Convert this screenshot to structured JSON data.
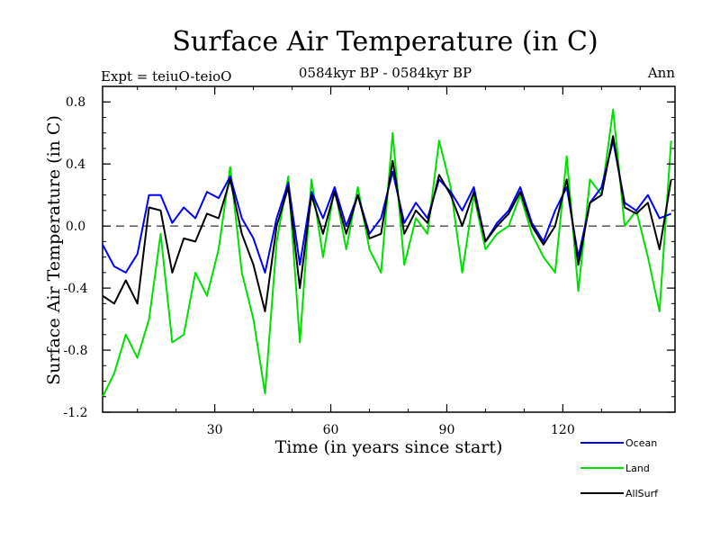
{
  "header": {
    "title": "Surface Air Temperature (in C)",
    "expt": "Expt = teiuO-teioO",
    "period": "0584kyr BP - 0584kyr BP",
    "season": "Ann"
  },
  "chart_data": {
    "type": "line",
    "title": "Surface Air Temperature (in C)",
    "xlabel": "Time (in years since start)",
    "ylabel": "Surface Air Temperature (in C)",
    "xlim": [
      1,
      149
    ],
    "ylim": [
      -1.2,
      0.9
    ],
    "xticks": [
      30,
      60,
      90,
      120
    ],
    "yticks": [
      -1.2,
      -0.8,
      -0.4,
      0.0,
      0.4,
      0.8
    ],
    "ytick_labels": [
      "-1.2",
      "-0.8",
      "-0.4",
      "0.0",
      "0.4",
      "0.8"
    ],
    "zero_line": true,
    "legend": {
      "position": "bottom-right",
      "entries": [
        "Ocean",
        "Land",
        "AllSurf"
      ]
    },
    "series": [
      {
        "name": "Ocean",
        "color": "#0000ff",
        "x": [
          1,
          4,
          7,
          10,
          13,
          16,
          19,
          22,
          25,
          28,
          31,
          34,
          37,
          40,
          43,
          46,
          49,
          52,
          55,
          58,
          61,
          64,
          67,
          70,
          73,
          76,
          79,
          82,
          85,
          88,
          91,
          94,
          97,
          100,
          103,
          106,
          109,
          112,
          115,
          118,
          121,
          124,
          127,
          130,
          133,
          136,
          139,
          142,
          145,
          148
        ],
        "values": [
          -0.12,
          -0.26,
          -0.3,
          -0.18,
          0.2,
          0.2,
          0.02,
          0.12,
          0.05,
          0.22,
          0.18,
          0.32,
          0.05,
          -0.08,
          -0.3,
          0.05,
          0.28,
          -0.25,
          0.22,
          0.05,
          0.25,
          0.0,
          0.2,
          -0.05,
          0.05,
          0.35,
          0.02,
          0.15,
          0.05,
          0.3,
          0.22,
          0.1,
          0.25,
          -0.1,
          0.02,
          0.1,
          0.25,
          0.02,
          -0.1,
          0.1,
          0.25,
          -0.2,
          0.15,
          0.25,
          0.55,
          0.15,
          0.1,
          0.2,
          0.05,
          0.08
        ]
      },
      {
        "name": "Land",
        "color": "#00e000",
        "x": [
          1,
          4,
          7,
          10,
          13,
          16,
          19,
          22,
          25,
          28,
          31,
          34,
          37,
          40,
          43,
          46,
          49,
          52,
          55,
          58,
          61,
          64,
          67,
          70,
          73,
          76,
          79,
          82,
          85,
          88,
          91,
          94,
          97,
          100,
          103,
          106,
          109,
          112,
          115,
          118,
          121,
          124,
          127,
          130,
          133,
          136,
          139,
          142,
          145,
          148
        ],
        "values": [
          -1.1,
          -0.95,
          -0.7,
          -0.85,
          -0.6,
          -0.05,
          -0.75,
          -0.7,
          -0.3,
          -0.45,
          -0.15,
          0.38,
          -0.3,
          -0.6,
          -1.08,
          -0.1,
          0.32,
          -0.75,
          0.3,
          -0.2,
          0.25,
          -0.15,
          0.25,
          -0.15,
          -0.3,
          0.6,
          -0.25,
          0.05,
          -0.05,
          0.55,
          0.25,
          -0.3,
          0.2,
          -0.15,
          -0.05,
          0.0,
          0.2,
          -0.05,
          -0.2,
          -0.3,
          0.45,
          -0.42,
          0.3,
          0.2,
          0.75,
          0.0,
          0.1,
          -0.2,
          -0.55,
          0.55
        ]
      },
      {
        "name": "AllSurf",
        "color": "#000000",
        "x": [
          1,
          4,
          7,
          10,
          13,
          16,
          19,
          22,
          25,
          28,
          31,
          34,
          37,
          40,
          43,
          46,
          49,
          52,
          55,
          58,
          61,
          64,
          67,
          70,
          73,
          76,
          79,
          82,
          85,
          88,
          91,
          94,
          97,
          100,
          103,
          106,
          109,
          112,
          115,
          118,
          121,
          124,
          127,
          130,
          133,
          136,
          139,
          142,
          145,
          148
        ],
        "values": [
          -0.45,
          -0.5,
          -0.35,
          -0.5,
          0.12,
          0.1,
          -0.3,
          -0.08,
          -0.1,
          0.08,
          0.05,
          0.3,
          -0.05,
          -0.25,
          -0.55,
          0.0,
          0.25,
          -0.4,
          0.2,
          -0.05,
          0.22,
          -0.05,
          0.2,
          -0.08,
          -0.05,
          0.42,
          -0.05,
          0.1,
          0.02,
          0.33,
          0.2,
          0.0,
          0.22,
          -0.1,
          0.0,
          0.08,
          0.22,
          0.0,
          -0.12,
          0.0,
          0.3,
          -0.25,
          0.15,
          0.2,
          0.58,
          0.12,
          0.08,
          0.15,
          -0.15,
          0.3
        ]
      }
    ]
  }
}
